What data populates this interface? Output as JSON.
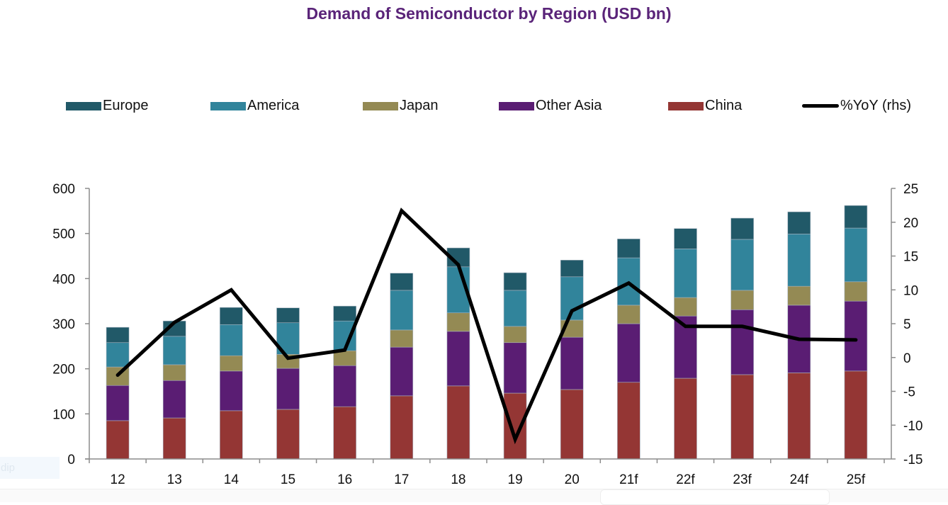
{
  "chart_data": {
    "type": "bar",
    "stacked": true,
    "title": "Demand of Semiconductor by Region (USD bn)",
    "xlabel": "",
    "ylabel": "",
    "categories": [
      "12",
      "13",
      "14",
      "15",
      "16",
      "17",
      "18",
      "19",
      "20",
      "21f",
      "22f",
      "23f",
      "24f",
      "25f"
    ],
    "series": [
      {
        "name": "China",
        "color": "#943634",
        "values": [
          85,
          91,
          107,
          110,
          116,
          140,
          162,
          146,
          154,
          170,
          179,
          187,
          191,
          195
        ]
      },
      {
        "name": "Other Asia",
        "color": "#5a1d73",
        "values": [
          78,
          83,
          88,
          91,
          91,
          108,
          121,
          112,
          116,
          130,
          138,
          144,
          150,
          155
        ]
      },
      {
        "name": "Japan",
        "color": "#948a54",
        "values": [
          41,
          35,
          34,
          31,
          33,
          38,
          41,
          36,
          38,
          41,
          41,
          43,
          42,
          43
        ]
      },
      {
        "name": "America",
        "color": "#31849b",
        "values": [
          54,
          63,
          69,
          70,
          66,
          88,
          102,
          80,
          96,
          105,
          108,
          113,
          116,
          119
        ]
      },
      {
        "name": "Europe",
        "color": "#215968",
        "values": [
          34,
          34,
          38,
          33,
          33,
          38,
          42,
          39,
          37,
          42,
          45,
          47,
          49,
          50
        ]
      }
    ],
    "line_series": {
      "name": "%YoY (rhs)",
      "color": "#000000",
      "axis": "right",
      "values": [
        -2.6,
        5.2,
        10.0,
        -0.1,
        1.1,
        21.7,
        13.7,
        -12.1,
        6.9,
        11.0,
        4.6,
        4.6,
        2.7,
        2.6
      ]
    },
    "ylim": [
      0,
      600
    ],
    "yticks": [
      0,
      100,
      200,
      300,
      400,
      500,
      600
    ],
    "y2lim": [
      -15,
      25
    ],
    "y2ticks": [
      -15,
      -10,
      -5,
      0,
      5,
      10,
      15,
      20,
      25
    ],
    "grid": false,
    "legend": {
      "placement": "top",
      "order": [
        "Europe",
        "America",
        "Japan",
        "Other Asia",
        "China",
        "%YoY (rhs)"
      ]
    }
  },
  "ui": {
    "ghost_text": "dip"
  }
}
